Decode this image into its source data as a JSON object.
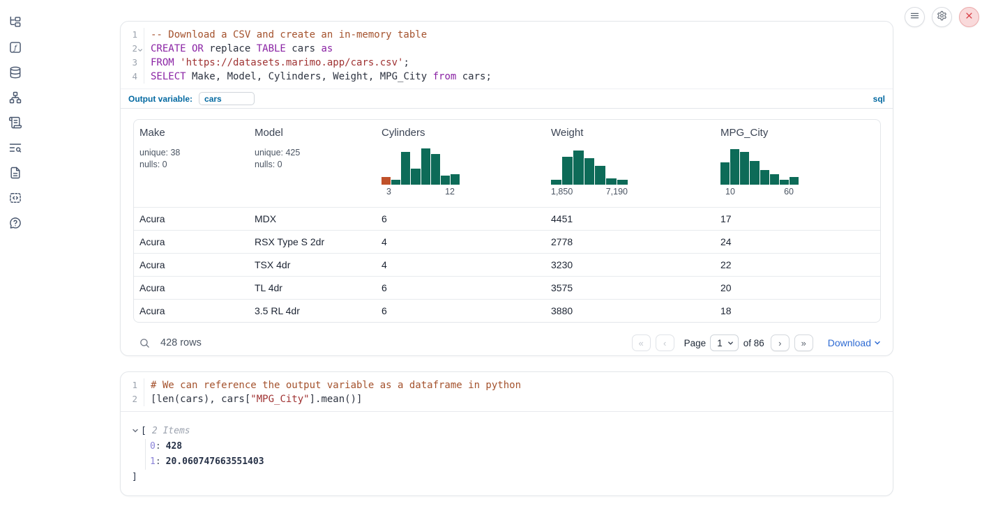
{
  "toolbar": {
    "menu_button": "menu",
    "settings_button": "settings",
    "shutdown_button": "shutdown"
  },
  "sidebar_icons": [
    "file-explorer",
    "variables",
    "datasources",
    "dependency-graph",
    "logs",
    "tracing",
    "documentation",
    "snippets",
    "help"
  ],
  "sql_cell": {
    "line_numbers": [
      "1",
      "2",
      "3",
      "4"
    ],
    "code_lines": [
      [
        {
          "t": "-- Download a CSV and create an in-memory table",
          "c": "comment"
        }
      ],
      [
        {
          "t": "CREATE OR",
          "c": "kw"
        },
        {
          "t": " replace ",
          "c": "plain"
        },
        {
          "t": "TABLE",
          "c": "kw"
        },
        {
          "t": " cars ",
          "c": "plain"
        },
        {
          "t": "as",
          "c": "kw"
        }
      ],
      [
        {
          "t": "FROM",
          "c": "kw"
        },
        {
          "t": " ",
          "c": "plain"
        },
        {
          "t": "'https://datasets.marimo.app/cars.csv'",
          "c": "str"
        },
        {
          "t": ";",
          "c": "plain"
        }
      ],
      [
        {
          "t": "SELECT",
          "c": "kw"
        },
        {
          "t": " Make, Model, Cylinders, Weight, MPG_City ",
          "c": "plain"
        },
        {
          "t": "from",
          "c": "kw"
        },
        {
          "t": " cars;",
          "c": "plain"
        }
      ]
    ],
    "output_variable_label": "Output variable:",
    "output_variable_value": "cars",
    "language_label": "sql"
  },
  "data_table": {
    "columns": [
      {
        "name": "Make",
        "unique": "unique: 38",
        "nulls": "nulls: 0"
      },
      {
        "name": "Model",
        "unique": "unique: 425",
        "nulls": "nulls: 0"
      },
      {
        "name": "Cylinders"
      },
      {
        "name": "Weight"
      },
      {
        "name": "MPG_City"
      }
    ],
    "rows": [
      [
        "Acura",
        "MDX",
        "6",
        "4451",
        "17"
      ],
      [
        "Acura",
        "RSX Type S 2dr",
        "4",
        "2778",
        "24"
      ],
      [
        "Acura",
        "TSX 4dr",
        "4",
        "3230",
        "22"
      ],
      [
        "Acura",
        "TL 4dr",
        "6",
        "3575",
        "20"
      ],
      [
        "Acura",
        "3.5 RL 4dr",
        "6",
        "3880",
        "18"
      ]
    ],
    "row_count_label": "428 rows",
    "pagination": {
      "first_label": "«",
      "prev_label": "‹",
      "page_label": "Page",
      "current_page": "1",
      "of_label": "of 86",
      "next_label": "›",
      "last_label": "»",
      "download_label": "Download"
    }
  },
  "chart_data": [
    {
      "type": "bar",
      "title": "Cylinders histogram",
      "axis_labels": [
        "3",
        "12"
      ],
      "x_range": [
        3,
        12
      ],
      "relative_heights": [
        20,
        12,
        85,
        42,
        95,
        80,
        23,
        28
      ],
      "bar_color": "#0d6b58",
      "bar_colors": [
        "#c0512a",
        "#0d6b58",
        "#0d6b58",
        "#0d6b58",
        "#0d6b58",
        "#0d6b58",
        "#0d6b58",
        "#0d6b58"
      ]
    },
    {
      "type": "bar",
      "title": "Weight histogram",
      "axis_labels": [
        "1,850",
        "7,190"
      ],
      "x_range": [
        1850,
        7190
      ],
      "relative_heights": [
        12,
        72,
        90,
        70,
        50,
        17,
        13
      ],
      "bar_color": "#0d6b58"
    },
    {
      "type": "bar",
      "title": "MPG_City histogram",
      "axis_labels": [
        "10",
        "60"
      ],
      "x_range": [
        10,
        60
      ],
      "relative_heights": [
        58,
        92,
        85,
        62,
        38,
        28,
        13,
        20
      ],
      "bar_color": "#0d6b58"
    }
  ],
  "python_cell": {
    "line_numbers": [
      "1",
      "2"
    ],
    "code_lines": [
      [
        {
          "t": "# We can reference the output variable as a dataframe in python",
          "c": "comment"
        }
      ],
      [
        {
          "t": "[len(cars), cars[",
          "c": "plain"
        },
        {
          "t": "\"MPG_City\"",
          "c": "str"
        },
        {
          "t": "].mean()]",
          "c": "plain"
        }
      ]
    ]
  },
  "output_tree": {
    "open_bracket": "[",
    "count_label": "2 Items",
    "items": [
      {
        "key": "0",
        "sep": ":",
        "value": "428"
      },
      {
        "key": "1",
        "sep": ":",
        "value": "20.060747663551403"
      }
    ],
    "close_bracket": "]"
  }
}
